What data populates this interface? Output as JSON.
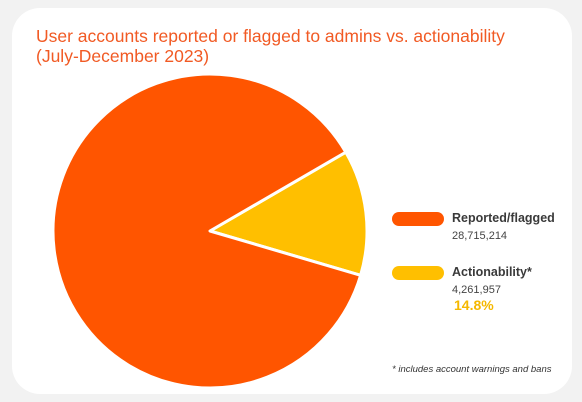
{
  "chart_data": {
    "type": "pie",
    "title": "User accounts reported or flagged to admins vs. actionability (July-December 2023)",
    "slices": [
      {
        "name": "Reported/flagged",
        "value": 28715214,
        "value_text": "28,715,214",
        "color": "#ff5500"
      },
      {
        "name": "Actionability*",
        "value": 4261957,
        "value_text": "4,261,957",
        "percent_text": "14.8%",
        "color": "#ffbf00"
      }
    ],
    "legend_position": "right",
    "footnote": "* includes account warnings and bans"
  },
  "colors": {
    "title": "#f15a24",
    "percent": "#f5b800",
    "slice_border": "#ffffff",
    "card_background": "#ffffff",
    "page_background": "#f2f2f2"
  }
}
